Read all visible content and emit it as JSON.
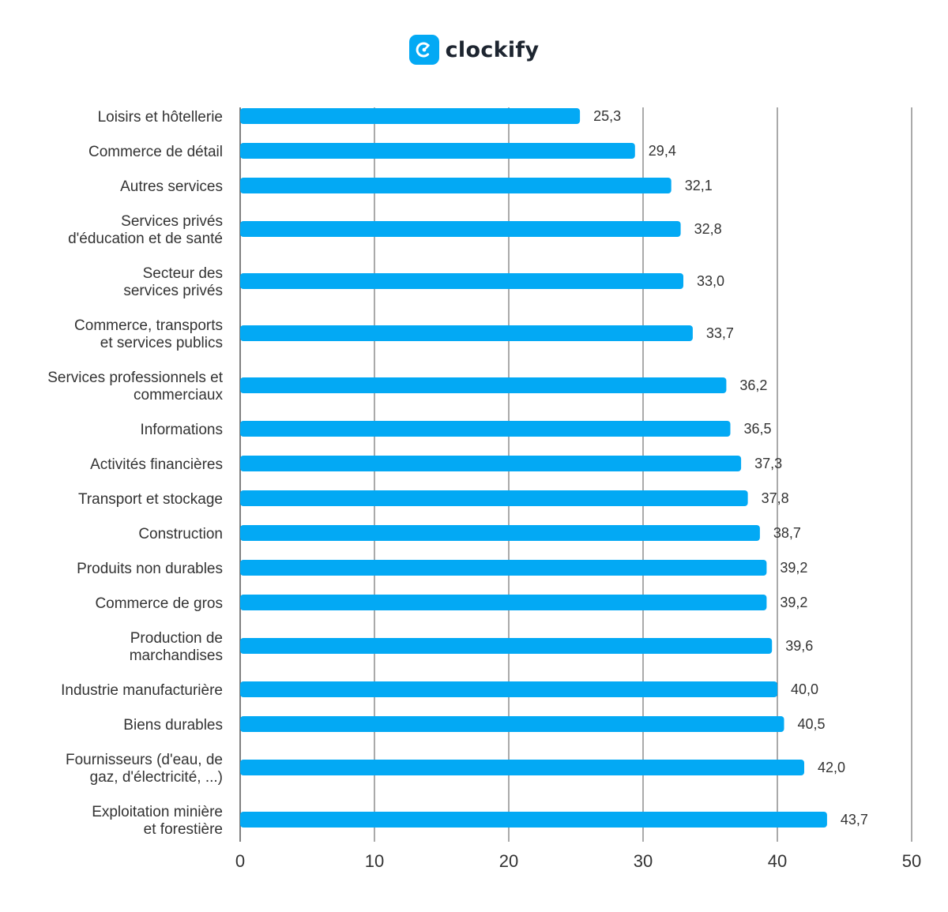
{
  "brand": {
    "name": "clockify",
    "logo_icon": "clockify-logo-icon",
    "logo_color": "#03a9f4"
  },
  "colors": {
    "bar": "#03a9f4",
    "grid": "#555555",
    "text": "#333333",
    "background": "#ffffff"
  },
  "chart_data": {
    "type": "bar",
    "orientation": "horizontal",
    "title": "",
    "xlabel": "",
    "ylabel": "",
    "xlim": [
      0,
      50
    ],
    "x_ticks": [
      0,
      10,
      20,
      30,
      40,
      50
    ],
    "x_tick_labels": [
      "0",
      "10",
      "20",
      "30",
      "40",
      "50"
    ],
    "grid": "vertical",
    "legend": "none",
    "categories": [
      "Loisirs et hôtellerie",
      "Commerce de détail",
      "Autres services",
      "Services privés d'éducation et de santé",
      "Secteur des services privés",
      "Commerce, transports et services publics",
      "Services professionnels et commerciaux",
      "Informations",
      "Activités financières",
      "Transport et stockage",
      "Construction",
      "Produits non durables",
      "Commerce de gros",
      "Production de marchandises",
      "Industrie manufacturière",
      "Biens durables",
      "Fournisseurs (d'eau, de gaz, d'électricité, ...)",
      "Exploitation minière et forestière"
    ],
    "category_lines": [
      [
        "Loisirs et hôtellerie"
      ],
      [
        "Commerce de détail"
      ],
      [
        "Autres services"
      ],
      [
        "Services privés",
        "d'éducation et de santé"
      ],
      [
        "Secteur des",
        "services privés"
      ],
      [
        "Commerce, transports",
        "et services publics"
      ],
      [
        "Services professionnels et",
        "commerciaux"
      ],
      [
        "Informations"
      ],
      [
        "Activités financières"
      ],
      [
        "Transport et stockage"
      ],
      [
        "Construction"
      ],
      [
        "Produits non durables"
      ],
      [
        "Commerce de gros"
      ],
      [
        "Production de",
        "marchandises"
      ],
      [
        "Industrie manufacturière"
      ],
      [
        "Biens durables"
      ],
      [
        "Fournisseurs (d'eau, de",
        "gaz, d'électricité, ...)"
      ],
      [
        "Exploitation minière",
        "et forestière"
      ]
    ],
    "values": [
      25.3,
      29.4,
      32.1,
      32.8,
      33.0,
      33.7,
      36.2,
      36.5,
      37.3,
      37.8,
      38.7,
      39.2,
      39.2,
      39.6,
      40.0,
      40.5,
      42.0,
      43.7
    ],
    "value_labels": [
      "25,3",
      "29,4",
      "32,1",
      "32,8",
      "33,0",
      "33,7",
      "36,2",
      "36,5",
      "37,3",
      "37,8",
      "38,7",
      "39,2",
      "39,2",
      "39,6",
      "40,0",
      "40,5",
      "42,0",
      "43,7"
    ]
  }
}
